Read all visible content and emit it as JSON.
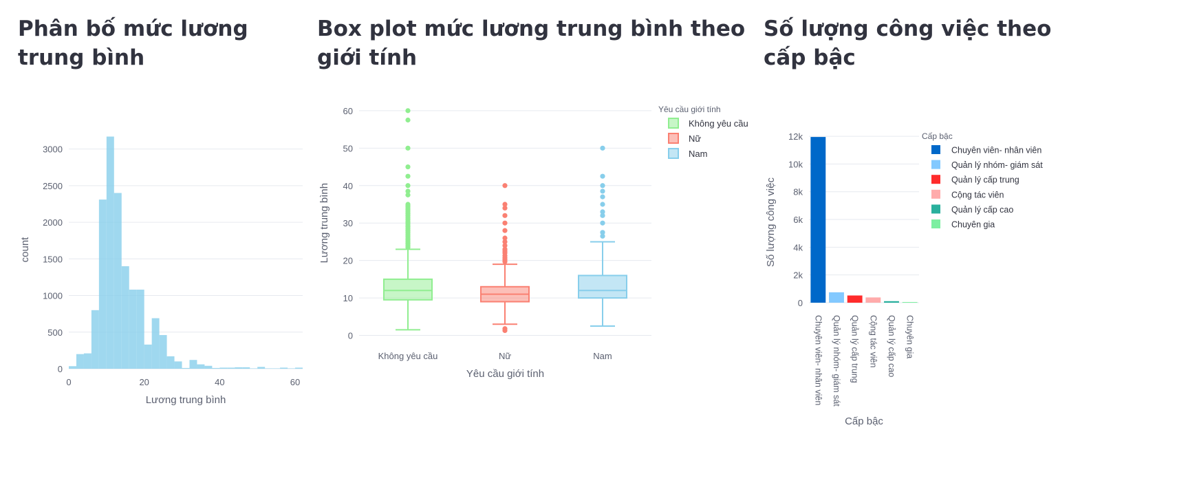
{
  "titles": {
    "hist": "Phân bố mức lương trung bình",
    "box": "Box plot mức lương trung bình theo giới tính",
    "bar": "Số lượng công việc theo cấp bậc"
  },
  "colors": {
    "green": "#90ee90",
    "red": "#fa8072",
    "blue": "#87ceeb",
    "bar_colors": [
      "#0068c9",
      "#83c9ff",
      "#ff2b2b",
      "#ffabab",
      "#29b09d",
      "#7defa1"
    ]
  },
  "chart_data": [
    {
      "type": "bar",
      "subtype": "histogram",
      "xlabel": "Lương trung bình",
      "ylabel": "count",
      "xlim": [
        0,
        62
      ],
      "ylim": [
        0,
        3250
      ],
      "xticks": [
        "0",
        "20",
        "40",
        "60"
      ],
      "yticks": [
        "0",
        "500",
        "1000",
        "1500",
        "2000",
        "2500",
        "3000"
      ],
      "bins": [
        {
          "x0": 0,
          "x1": 2,
          "count": 35
        },
        {
          "x0": 2,
          "x1": 4,
          "count": 200
        },
        {
          "x0": 4,
          "x1": 6,
          "count": 210
        },
        {
          "x0": 6,
          "x1": 8,
          "count": 800
        },
        {
          "x0": 8,
          "x1": 10,
          "count": 2310
        },
        {
          "x0": 10,
          "x1": 12,
          "count": 3170
        },
        {
          "x0": 12,
          "x1": 14,
          "count": 2400
        },
        {
          "x0": 14,
          "x1": 16,
          "count": 1400
        },
        {
          "x0": 16,
          "x1": 18,
          "count": 1080
        },
        {
          "x0": 18,
          "x1": 20,
          "count": 1080
        },
        {
          "x0": 20,
          "x1": 22,
          "count": 330
        },
        {
          "x0": 22,
          "x1": 24,
          "count": 690
        },
        {
          "x0": 24,
          "x1": 26,
          "count": 460
        },
        {
          "x0": 26,
          "x1": 28,
          "count": 170
        },
        {
          "x0": 28,
          "x1": 30,
          "count": 100
        },
        {
          "x0": 30,
          "x1": 32,
          "count": 10
        },
        {
          "x0": 32,
          "x1": 34,
          "count": 120
        },
        {
          "x0": 34,
          "x1": 36,
          "count": 60
        },
        {
          "x0": 36,
          "x1": 38,
          "count": 40
        },
        {
          "x0": 38,
          "x1": 40,
          "count": 10
        },
        {
          "x0": 40,
          "x1": 42,
          "count": 15
        },
        {
          "x0": 42,
          "x1": 44,
          "count": 15
        },
        {
          "x0": 44,
          "x1": 46,
          "count": 20
        },
        {
          "x0": 46,
          "x1": 48,
          "count": 20
        },
        {
          "x0": 48,
          "x1": 50,
          "count": 5
        },
        {
          "x0": 50,
          "x1": 52,
          "count": 25
        },
        {
          "x0": 52,
          "x1": 54,
          "count": 5
        },
        {
          "x0": 54,
          "x1": 56,
          "count": 5
        },
        {
          "x0": 56,
          "x1": 58,
          "count": 15
        },
        {
          "x0": 58,
          "x1": 60,
          "count": 5
        },
        {
          "x0": 60,
          "x1": 62,
          "count": 15
        }
      ]
    },
    {
      "type": "box",
      "xlabel": "Yêu cầu giới tính",
      "ylabel": "Lương trung bình",
      "ylim": [
        -1,
        62
      ],
      "yticks": [
        "0",
        "10",
        "20",
        "30",
        "40",
        "50",
        "60"
      ],
      "legend_title": "Yêu cầu giới tính",
      "legend_position": "top-right",
      "groups": [
        {
          "name": "Không yêu cầu",
          "min": 1.5,
          "q1": 9.5,
          "median": 12,
          "q3": 15,
          "max": 23,
          "outliers": [
            23.5,
            24,
            24.5,
            25,
            25.5,
            26,
            26.5,
            27,
            27.5,
            28,
            28.5,
            29,
            29.5,
            30,
            30.5,
            31,
            31.5,
            32,
            32.5,
            33,
            33.5,
            34,
            34.5,
            35,
            37.5,
            38.5,
            40,
            42.5,
            45,
            50,
            57.5,
            60
          ]
        },
        {
          "name": "Nữ",
          "min": 3,
          "q1": 9,
          "median": 11,
          "q3": 13,
          "max": 19,
          "outliers": [
            1.3,
            1.8,
            19.7,
            20.2,
            20.7,
            21.3,
            22,
            22.5,
            23,
            24,
            25,
            26,
            28,
            30,
            32,
            34,
            35,
            40
          ]
        },
        {
          "name": "Nam",
          "min": 2.5,
          "q1": 10,
          "median": 12,
          "q3": 16,
          "max": 25,
          "outliers": [
            26.5,
            27.5,
            30,
            32,
            33,
            35,
            37,
            38.5,
            40,
            42.5,
            50
          ]
        }
      ]
    },
    {
      "type": "bar",
      "xlabel": "Cấp bậc",
      "ylabel": "Số lượng công việc",
      "ylim": [
        0,
        12600
      ],
      "yticks": [
        "0",
        "2k",
        "4k",
        "6k",
        "8k",
        "10k",
        "12k"
      ],
      "legend_title": "Cấp bậc",
      "legend_position": "top-right",
      "categories": [
        "Chuyên viên- nhân viên",
        "Quản lý nhóm- giám sát",
        "Quản lý cấp trung",
        "Cộng tác viên",
        "Quản lý cấp cao",
        "Chuyên gia"
      ],
      "values": [
        11950,
        750,
        520,
        380,
        110,
        50
      ]
    }
  ]
}
